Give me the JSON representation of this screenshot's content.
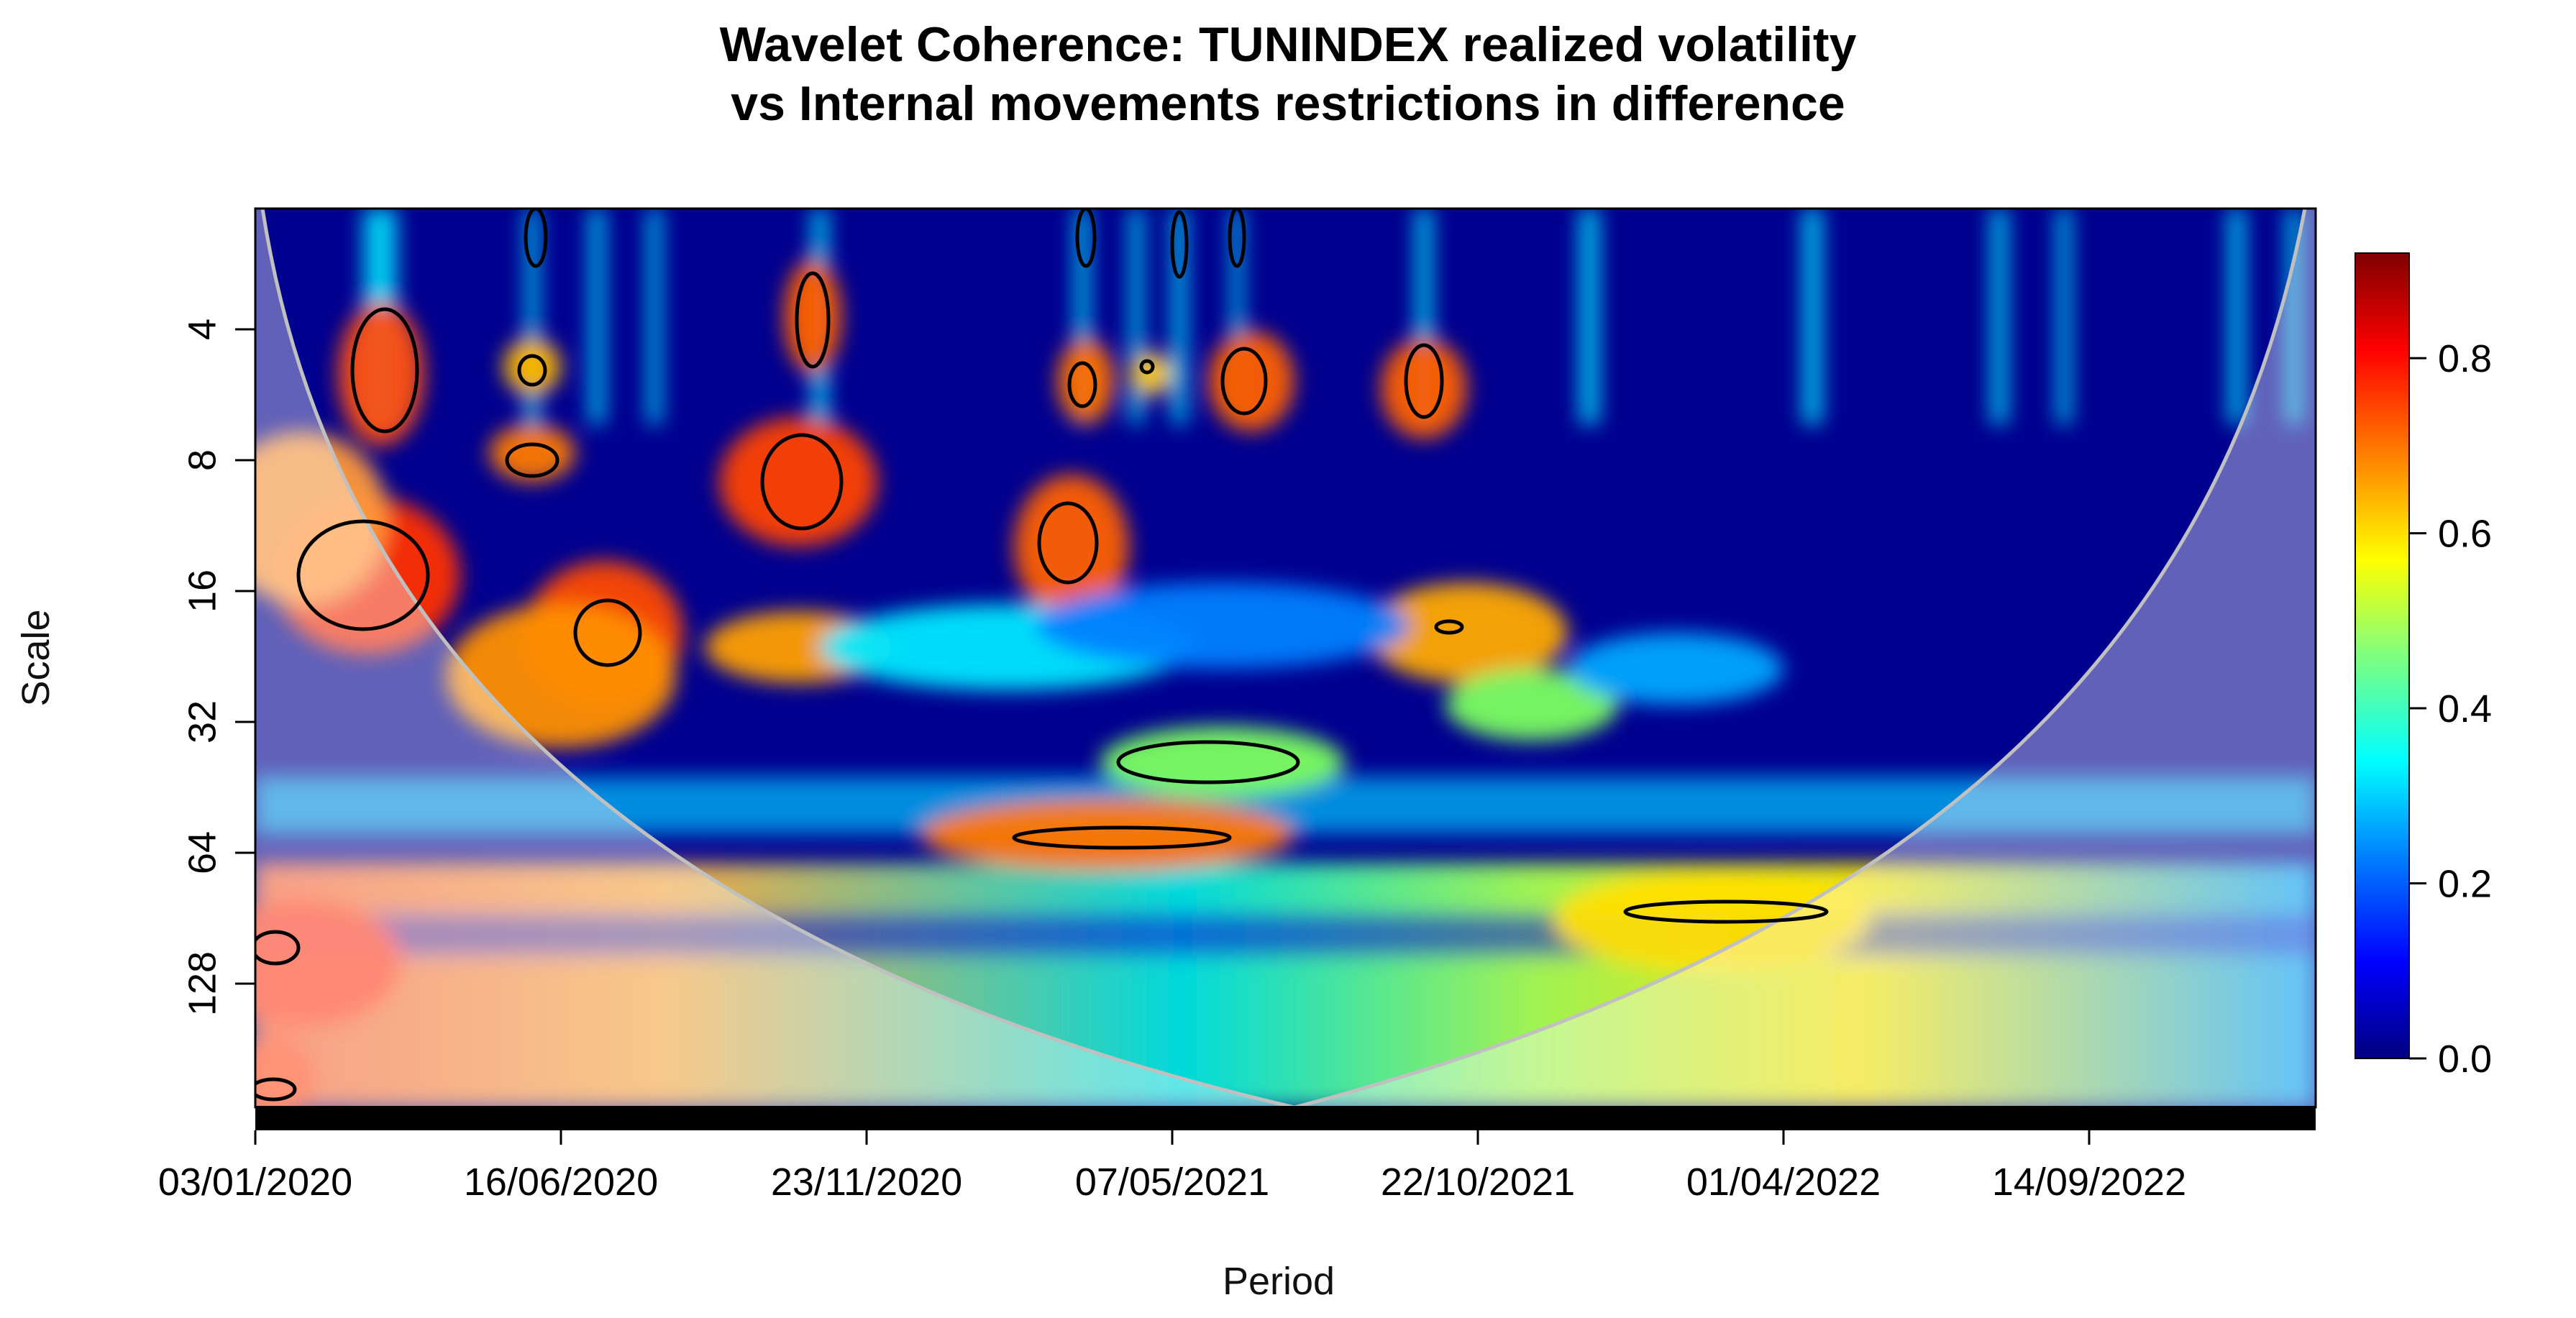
{
  "chart_data": {
    "type": "heatmap",
    "title": "Wavelet Coherence: TUNINDEX realized volatility",
    "subtitle": "vs Internal movements restrictions in difference",
    "xlabel": "Period",
    "ylabel": "Scale",
    "x_ticks": [
      "03/01/2020",
      "16/06/2020",
      "23/11/2020",
      "07/05/2021",
      "22/10/2021",
      "01/04/2022",
      "14/09/2022"
    ],
    "y_ticks": [
      4,
      8,
      16,
      32,
      64,
      128
    ],
    "y_scale": "log2",
    "colorbar": {
      "ticks": [
        0.0,
        0.2,
        0.4,
        0.6,
        0.8
      ],
      "colors": [
        "#00007f",
        "#0000ff",
        "#007fff",
        "#00ffff",
        "#7fff7f",
        "#ffff00",
        "#ff7f00",
        "#ff0000",
        "#7f0000"
      ]
    },
    "cone_of_influence": true,
    "significance_contours": true
  }
}
